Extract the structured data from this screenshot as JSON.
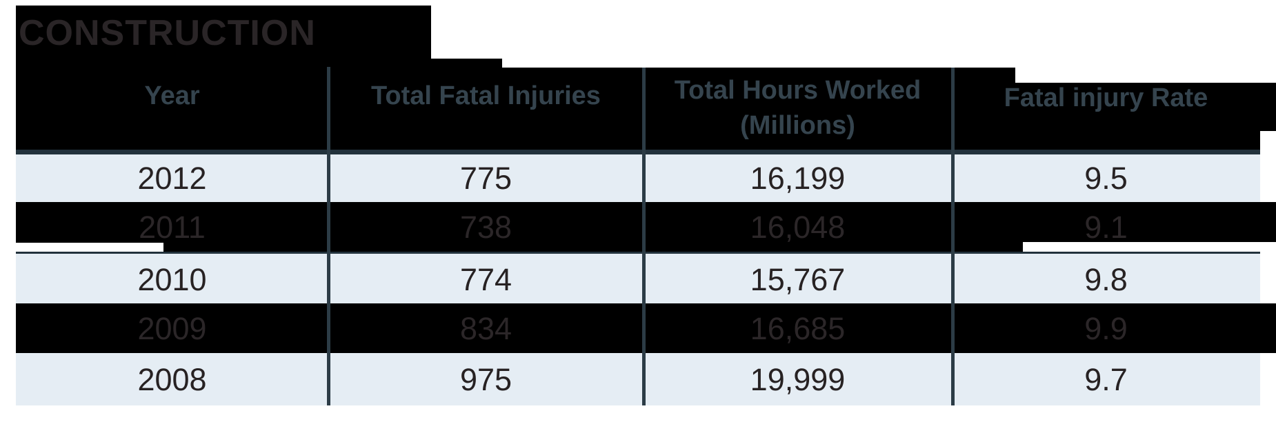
{
  "title": "CONSTRUCTION",
  "table": {
    "headers": [
      {
        "line1": "Year"
      },
      {
        "line1": "Total Fatal Injuries"
      },
      {
        "line1": "Total Hours Worked",
        "line2": "(Millions)"
      },
      {
        "line1": "Fatal injury Rate"
      }
    ],
    "rows": [
      {
        "variant": "light",
        "cells": [
          "2012",
          "775",
          "16,199",
          "9.5"
        ]
      },
      {
        "variant": "dark",
        "cells": [
          "2011",
          "738",
          "16,048",
          "9.1"
        ]
      },
      {
        "variant": "light",
        "cells": [
          "2010",
          "774",
          "15,767",
          "9.8"
        ]
      },
      {
        "variant": "dark",
        "cells": [
          "2009",
          "834",
          "16,685",
          "9.9"
        ]
      },
      {
        "variant": "light",
        "cells": [
          "2008",
          "975",
          "19,999",
          "9.7"
        ]
      }
    ]
  },
  "colors": {
    "background_black": "#000000",
    "row_light_blue": "#e5edf4",
    "divider_teal": "#2c3c46",
    "header_underline": "#22323c",
    "header_text": "#35444e",
    "ink_dark": "#272223",
    "ink_on_black": "#2b2628",
    "white": "#ffffff"
  },
  "chart_data": {
    "type": "table",
    "title": "CONSTRUCTION",
    "columns": [
      "Year",
      "Total Fatal Injuries",
      "Total Hours Worked (Millions)",
      "Fatal injury Rate"
    ],
    "rows": [
      [
        2012,
        775,
        16199,
        9.5
      ],
      [
        2011,
        738,
        16048,
        9.1
      ],
      [
        2010,
        774,
        15767,
        9.8
      ],
      [
        2009,
        834,
        16685,
        9.9
      ],
      [
        2008,
        975,
        19999,
        9.7
      ]
    ]
  }
}
